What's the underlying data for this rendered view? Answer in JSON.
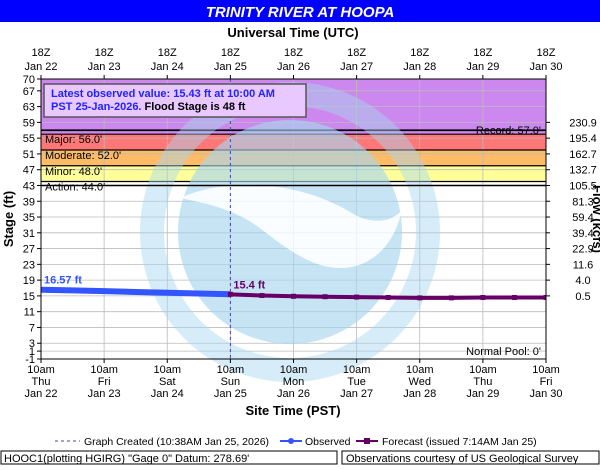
{
  "chart_data": {
    "type": "line",
    "title": "TRINITY RIVER AT HOOPA",
    "top_axis_title": "Universal Time (UTC)",
    "top_ticks": [
      {
        "l1": "18Z",
        "l2": "Jan 22"
      },
      {
        "l1": "18Z",
        "l2": "Jan 23"
      },
      {
        "l1": "18Z",
        "l2": "Jan 24"
      },
      {
        "l1": "18Z",
        "l2": "Jan 25"
      },
      {
        "l1": "18Z",
        "l2": "Jan 26"
      },
      {
        "l1": "18Z",
        "l2": "Jan 27"
      },
      {
        "l1": "18Z",
        "l2": "Jan 28"
      },
      {
        "l1": "18Z",
        "l2": "Jan 29"
      },
      {
        "l1": "18Z",
        "l2": "Jan 30"
      }
    ],
    "bottom_ticks": [
      {
        "l1": "10am",
        "l2": "Thu",
        "l3": "Jan 22"
      },
      {
        "l1": "10am",
        "l2": "Fri",
        "l3": "Jan 23"
      },
      {
        "l1": "10am",
        "l2": "Sat",
        "l3": "Jan 24"
      },
      {
        "l1": "10am",
        "l2": "Sun",
        "l3": "Jan 25"
      },
      {
        "l1": "10am",
        "l2": "Mon",
        "l3": "Jan 26"
      },
      {
        "l1": "10am",
        "l2": "Tue",
        "l3": "Jan 27"
      },
      {
        "l1": "10am",
        "l2": "Wed",
        "l3": "Jan 28"
      },
      {
        "l1": "10am",
        "l2": "Thu",
        "l3": "Jan 29"
      },
      {
        "l1": "10am",
        "l2": "Fri",
        "l3": "Jan 30"
      }
    ],
    "xlabel": "Site Time (PST)",
    "ylabel": "Stage (ft)",
    "y2label": "Flow (kcfs)",
    "xlim": [
      0,
      8
    ],
    "ylim": [
      -1,
      70
    ],
    "yticks": [
      -1,
      1,
      3,
      7,
      11,
      15,
      19,
      23,
      27,
      31,
      35,
      39,
      43,
      47,
      51,
      55,
      59,
      63,
      67,
      70
    ],
    "flow_ticks": [
      {
        "stage": 59,
        "label": "230.9"
      },
      {
        "stage": 55,
        "label": "195.4"
      },
      {
        "stage": 51,
        "label": "162.7"
      },
      {
        "stage": 47,
        "label": "132.7"
      },
      {
        "stage": 43,
        "label": "105.5"
      },
      {
        "stage": 39,
        "label": "81.3"
      },
      {
        "stage": 35,
        "label": "59.4"
      },
      {
        "stage": 31,
        "label": "39.4"
      },
      {
        "stage": 27,
        "label": "22.9"
      },
      {
        "stage": 23,
        "label": "11.6"
      },
      {
        "stage": 19,
        "label": "4.0"
      },
      {
        "stage": 15,
        "label": "0.5"
      }
    ],
    "flood_categories": [
      {
        "name": "Record",
        "label": "Record: 57.0'",
        "from": 55.8,
        "to": 70,
        "color": "#cc88ee",
        "line": 57.0
      },
      {
        "name": "Major",
        "label": "Major: 56.0'",
        "from": 55.6,
        "to": 56.0,
        "color": "#ee88ff",
        "line": 56.0
      },
      {
        "name": "Moderate",
        "label": "Moderate: 52.0'",
        "from": 52,
        "to": 56,
        "color": "#ff7777",
        "line": 52.0
      },
      {
        "name": "Minor",
        "label": "Minor: 48.0'",
        "from": 48,
        "to": 52,
        "color": "#ffbb66",
        "line": 48.0
      },
      {
        "name": "Action",
        "label": "Action: 44.0'",
        "from": 44,
        "to": 48,
        "color": "#ffff99",
        "line": 44.0
      }
    ],
    "normal_pool_label": "Normal Pool: 0'",
    "observed": {
      "name": "Observed",
      "color": "#3355ff",
      "x": [
        0,
        0.5,
        1,
        1.5,
        2,
        2.5,
        3.0
      ],
      "y": [
        16.57,
        16.4,
        16.2,
        16.0,
        15.8,
        15.6,
        15.43
      ]
    },
    "forecast": {
      "name": "Forecast",
      "color": "#660066",
      "x": [
        3.0,
        3.5,
        4,
        4.5,
        5,
        5.5,
        6,
        6.5,
        7,
        7.5,
        8.0
      ],
      "y": [
        15.4,
        15.1,
        14.9,
        14.8,
        14.7,
        14.6,
        14.5,
        14.5,
        14.6,
        14.6,
        14.6
      ]
    },
    "created_x": 3.0,
    "label_first_obs": "16.57 ft",
    "label_forecast_start": "15.4 ft",
    "info_box": {
      "line1": "Latest observed value: 15.43 ft at 10:00 AM",
      "line2a": "PST 25-Jan-2026.",
      "line2b": " Flood Stage is 48 ft"
    },
    "legend": {
      "graph_created": "Graph Created (10:38AM Jan 25, 2026)",
      "observed": "Observed",
      "forecast": "Forecast (issued 7:14AM Jan 25)"
    },
    "footer_left": "HOOC1(plotting HGIRG) \"Gage 0\" Datum: 278.69'",
    "footer_right": "Observations courtesy of US Geological Survey",
    "colors": {
      "title_bg": "#0000ff",
      "title_fg": "#ffffff",
      "plot_bg": "#ffffff",
      "header_bg": "#ffffff",
      "noaa": "#a7d6ef"
    }
  }
}
